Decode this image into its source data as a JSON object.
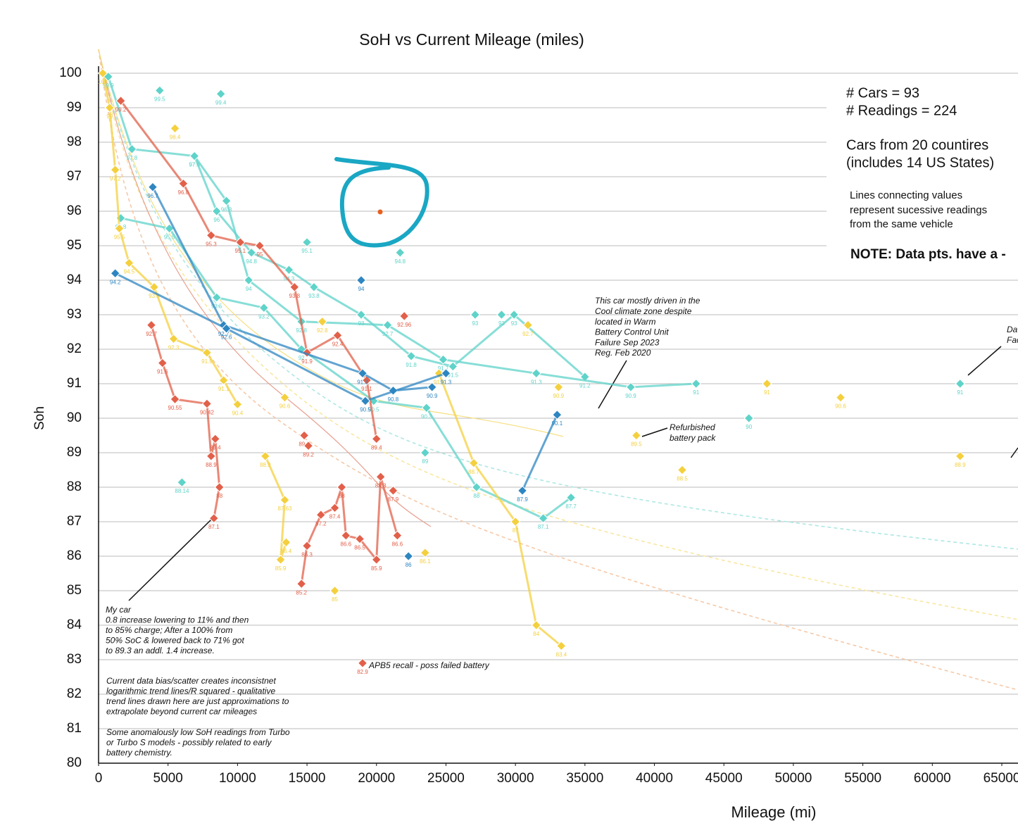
{
  "chart_data": {
    "type": "scatter",
    "title": "SoH vs Current Mileage (miles)",
    "x_label": "Mileage (mi)",
    "y_label": "Soh",
    "xlim": [
      0,
      65000
    ],
    "ylim": [
      80,
      100
    ],
    "xticks": [
      0,
      5000,
      10000,
      15000,
      20000,
      25000,
      30000,
      35000,
      40000,
      45000,
      50000,
      55000,
      60000,
      65000
    ],
    "yticks": [
      80,
      81,
      82,
      83,
      84,
      85,
      86,
      87,
      88,
      89,
      90,
      91,
      92,
      93,
      94,
      95,
      96,
      97,
      98,
      99,
      100
    ],
    "grid": true,
    "info": [
      "# Cars = 93",
      "# Readings = 224",
      "Cars from 20 countires",
      "(includes 14 US States)",
      "Lines connecting values",
      "represent sucessive readings",
      "from the same vehicle",
      "NOTE: Data pts. have a -"
    ],
    "annotations": {
      "my_car": [
        "My car",
        "0.8 increase lowering to 11% and then",
        "to 85% charge; After a 100% from",
        "50% SoC & lowered back to 71% got",
        "to 89.3 an addl. 1.4 increase."
      ],
      "bias": [
        "Current data bias/scatter creates inconsistnet",
        "logarithmic trend lines/R squared - qualitative",
        "trend lines drawn here are just approximations to",
        "extrapolate beyond current car mileages"
      ],
      "turbo": [
        "Some anomalously low SoH readings from Turbo",
        "or Turbo S models - possibly related to early",
        "battery chemistry."
      ],
      "recall": [
        "APB5 recall - poss failed battery"
      ],
      "cool": [
        "This car mostly driven in the",
        "Cool climate zone despite",
        "located in Warm",
        "Battery Control Unit",
        "Failure Sep 2023",
        "Reg. Feb 2020"
      ],
      "refurb": [
        "Refurbished",
        "battery pack"
      ],
      "cut": [
        "Da",
        "Fac"
      ]
    },
    "series": [
      {
        "color": "#5fd3c9",
        "lines": true,
        "x": [
          700,
          2400,
          6900,
          8500,
          11000,
          13700,
          15500,
          18900,
          22500,
          25500,
          29900,
          35000
        ],
        "values": [
          99.9,
          97.8,
          97.6,
          96,
          94.8,
          94.3,
          93.8,
          93,
          91.8,
          91.5,
          93,
          91.2
        ]
      },
      {
        "color": "#5fd3c9",
        "lines": true,
        "x": [
          1600,
          5100,
          8500,
          11900,
          14600,
          19800,
          23600,
          27200,
          32000,
          34000
        ],
        "values": [
          95.8,
          95.5,
          93.5,
          93.2,
          92,
          90.5,
          90.3,
          88,
          87.1,
          87.7
        ]
      },
      {
        "color": "#5fd3c9",
        "lines": true,
        "x": [
          6900,
          9200,
          10800,
          14600,
          20800,
          24800,
          31500,
          38300,
          43000
        ],
        "values": [
          97.6,
          96.3,
          94,
          92.8,
          92.7,
          91.7,
          91.3,
          90.9,
          91
        ]
      },
      {
        "color": "#5fd3c9",
        "lines": false,
        "x": [
          4400,
          8800,
          15000,
          21700,
          27100,
          29000,
          46800,
          62000,
          6000,
          23500
        ],
        "values": [
          99.5,
          99.4,
          95.1,
          94.8,
          93,
          93,
          90,
          91,
          88.14,
          89
        ]
      },
      {
        "color": "#e2604a",
        "lines": true,
        "x": [
          1600,
          6100,
          8100,
          10200,
          11600,
          14100,
          15000,
          17200,
          19300,
          20000
        ],
        "values": [
          99.2,
          96.8,
          95.3,
          95.1,
          95,
          93.8,
          91.9,
          92.4,
          91.1,
          89.4
        ]
      },
      {
        "color": "#e2604a",
        "lines": true,
        "x": [
          3800,
          4600,
          5500,
          7800,
          8100,
          8400,
          8700,
          8300
        ],
        "values": [
          92.7,
          91.6,
          90.55,
          90.42,
          88.9,
          89.4,
          88,
          87.1
        ]
      },
      {
        "color": "#e2604a",
        "lines": true,
        "x": [
          14600,
          15000,
          16000,
          17000,
          17500,
          17800,
          18800,
          20000,
          20300,
          21500
        ],
        "values": [
          85.2,
          86.3,
          87.2,
          87.4,
          88,
          86.6,
          86.5,
          85.9,
          88.3,
          86.6
        ]
      },
      {
        "color": "#e2604a",
        "lines": false,
        "x": [
          19000,
          21200,
          22000,
          14800,
          15100
        ],
        "values": [
          82.9,
          87.9,
          92.96,
          89.5,
          89.2
        ]
      },
      {
        "color": "#f4d03f",
        "lines": true,
        "x": [
          300,
          800,
          1200,
          1500,
          2200,
          4000,
          5400,
          7800,
          9000,
          10000
        ],
        "values": [
          100,
          99,
          97.2,
          95.5,
          94.5,
          93.8,
          92.3,
          91.9,
          91.1,
          90.4
        ]
      },
      {
        "color": "#f4d03f",
        "lines": true,
        "x": [
          12000,
          13400,
          13100,
          13500
        ],
        "values": [
          88.9,
          87.63,
          85.9,
          86.4
        ]
      },
      {
        "color": "#f4d03f",
        "lines": true,
        "x": [
          24500,
          27000,
          30000,
          31500,
          33300
        ],
        "values": [
          91.3,
          88.7,
          87,
          84,
          83.4
        ]
      },
      {
        "color": "#f4d03f",
        "lines": false,
        "x": [
          5500,
          17000,
          23500,
          30900,
          33100,
          38700,
          42000,
          48100,
          53400,
          62000,
          16100,
          13400
        ],
        "values": [
          98.4,
          85,
          86.1,
          92.7,
          90.9,
          89.5,
          88.5,
          91,
          90.6,
          88.9,
          92.8,
          90.6
        ]
      },
      {
        "color": "#2e86c1",
        "lines": true,
        "x": [
          3900,
          9000,
          19000,
          21200,
          24000
        ],
        "values": [
          96.7,
          92.7,
          91.3,
          90.8,
          90.9
        ]
      },
      {
        "color": "#2e86c1",
        "lines": true,
        "x": [
          1200,
          9200,
          19200,
          25000
        ],
        "values": [
          94.2,
          92.6,
          90.5,
          91.3
        ]
      },
      {
        "color": "#2e86c1",
        "lines": true,
        "x": [
          30500,
          33000
        ],
        "values": [
          87.9,
          90.1
        ]
      },
      {
        "color": "#2e86c1",
        "lines": false,
        "x": [
          18900,
          22300
        ],
        "values": [
          94,
          86
        ]
      }
    ]
  }
}
